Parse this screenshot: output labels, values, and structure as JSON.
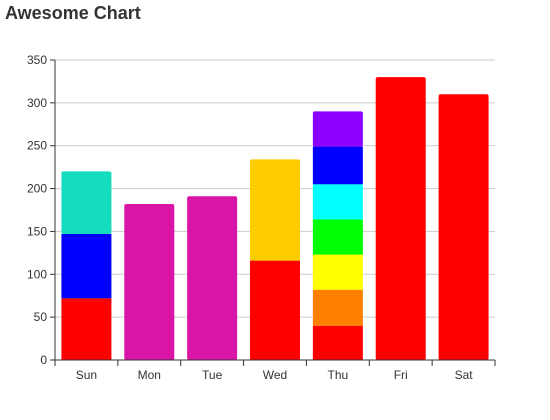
{
  "chart_data": {
    "type": "bar",
    "title": "Awesome Chart",
    "xlabel": "",
    "ylabel": "",
    "categories": [
      "Sun",
      "Mon",
      "Tue",
      "Wed",
      "Thu",
      "Fri",
      "Sat"
    ],
    "ylim": [
      0,
      350
    ],
    "yticks": [
      0,
      50,
      100,
      150,
      200,
      250,
      300,
      350
    ],
    "grid": true,
    "stacks": [
      {
        "category": "Sun",
        "segments": [
          {
            "value": 72,
            "color": "#ff0000"
          },
          {
            "value": 75,
            "color": "#0000ff"
          },
          {
            "value": 73,
            "color": "#16dcbf"
          }
        ]
      },
      {
        "category": "Mon",
        "segments": [
          {
            "value": 182,
            "color": "#d815a6"
          }
        ]
      },
      {
        "category": "Tue",
        "segments": [
          {
            "value": 191,
            "color": "#d815a6"
          }
        ]
      },
      {
        "category": "Wed",
        "segments": [
          {
            "value": 116,
            "color": "#ff0000"
          },
          {
            "value": 118,
            "color": "#ffcc00"
          }
        ]
      },
      {
        "category": "Thu",
        "segments": [
          {
            "value": 40,
            "color": "#ff0000"
          },
          {
            "value": 42,
            "color": "#ff7f00"
          },
          {
            "value": 41,
            "color": "#ffff00"
          },
          {
            "value": 41,
            "color": "#00ff00"
          },
          {
            "value": 41,
            "color": "#00ffff"
          },
          {
            "value": 44,
            "color": "#0000ff"
          },
          {
            "value": 41,
            "color": "#8b00ff"
          }
        ]
      },
      {
        "category": "Fri",
        "segments": [
          {
            "value": 330,
            "color": "#ff0000"
          }
        ]
      },
      {
        "category": "Sat",
        "segments": [
          {
            "value": 310,
            "color": "#ff0000"
          }
        ]
      }
    ]
  }
}
